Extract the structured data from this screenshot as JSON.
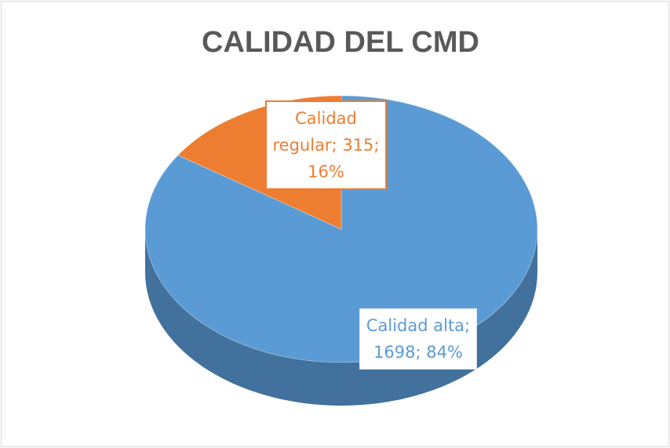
{
  "chart_data": {
    "type": "pie",
    "title": "CALIDAD DEL CMD",
    "categories": [
      "Calidad alta",
      "Calidad regular"
    ],
    "values": [
      1698,
      315
    ],
    "value_labels": [
      "Calidad alta; 1698; 84%",
      "Calidad regular; 315; 16%"
    ],
    "colors": [
      "#5b9bd5",
      "#ed7d31"
    ]
  }
}
